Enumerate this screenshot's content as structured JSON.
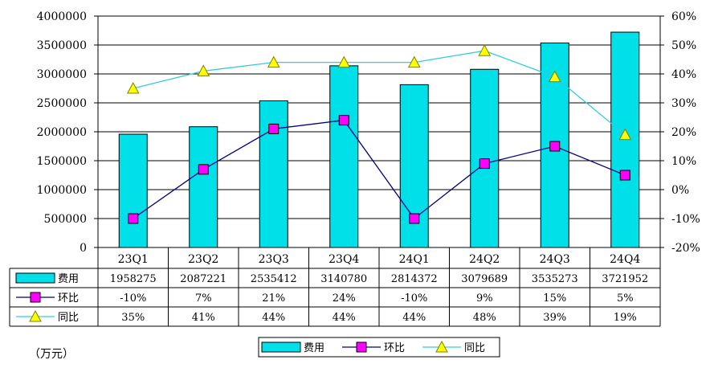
{
  "chart_data": {
    "type": "bar",
    "unit_label": "（万元）",
    "categories": [
      "23Q1",
      "23Q2",
      "23Q3",
      "23Q4",
      "24Q1",
      "24Q2",
      "24Q3",
      "24Q4"
    ],
    "left_axis": {
      "ylim": [
        0,
        4000000
      ],
      "ticks": [
        0,
        500000,
        1000000,
        1500000,
        2000000,
        2500000,
        3000000,
        3500000,
        4000000
      ],
      "tick_labels": [
        "0",
        "500000",
        "1000000",
        "1500000",
        "2000000",
        "2500000",
        "3000000",
        "3500000",
        "4000000"
      ]
    },
    "right_axis": {
      "ylim": [
        -20,
        60
      ],
      "ticks": [
        -20,
        -10,
        0,
        10,
        20,
        30,
        40,
        50,
        60
      ],
      "tick_labels": [
        "-20%",
        "-10%",
        "0%",
        "10%",
        "20%",
        "30%",
        "40%",
        "50%",
        "60%"
      ]
    },
    "series": [
      {
        "name": "费用",
        "kind": "bar",
        "axis": "left",
        "color": "#00e0e8",
        "values": [
          1958275,
          2087221,
          2535412,
          3140780,
          2814372,
          3079689,
          3535273,
          3721952
        ],
        "labels": [
          "1958275",
          "2087221",
          "2535412",
          "3140780",
          "2814372",
          "3079689",
          "3535273",
          "3721952"
        ]
      },
      {
        "name": "环比",
        "kind": "line",
        "axis": "right",
        "color": "#000080",
        "marker": "square",
        "marker_color": "#ff00ff",
        "values": [
          -10,
          7,
          21,
          24,
          -10,
          9,
          15,
          5
        ],
        "labels": [
          "-10%",
          "7%",
          "21%",
          "24%",
          "-10%",
          "9%",
          "15%",
          "5%"
        ]
      },
      {
        "name": "同比",
        "kind": "line",
        "axis": "right",
        "color": "#33ccdd",
        "marker": "triangle",
        "marker_color": "#ffff00",
        "values": [
          35,
          41,
          44,
          44,
          44,
          48,
          39,
          19
        ],
        "labels": [
          "35%",
          "41%",
          "44%",
          "44%",
          "44%",
          "48%",
          "39%",
          "19%"
        ]
      }
    ],
    "legend_position": "bottom-center",
    "data_table": true
  }
}
